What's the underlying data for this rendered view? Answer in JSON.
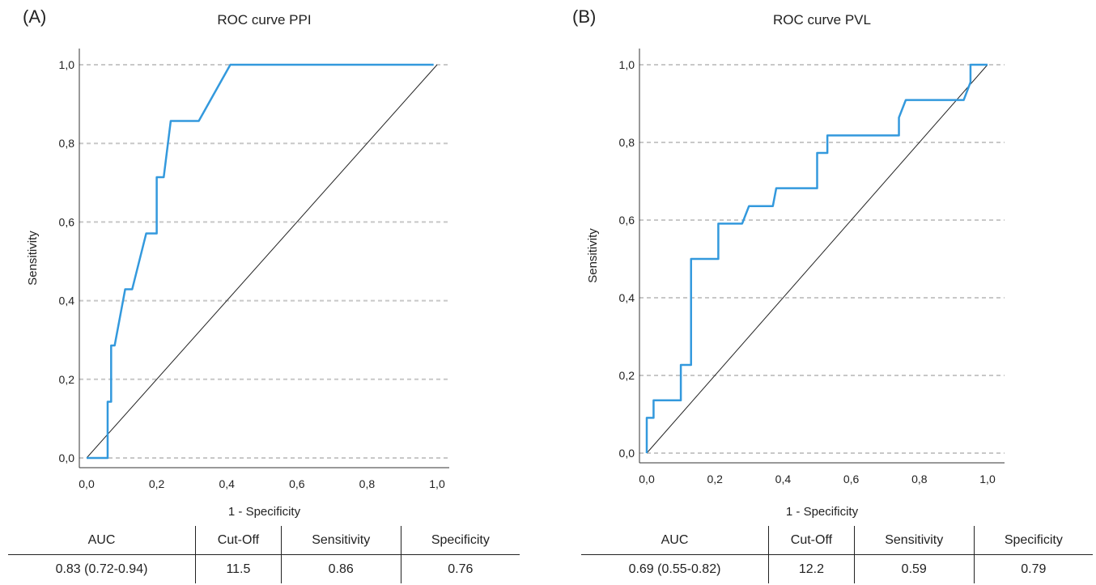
{
  "panels": [
    {
      "label": "(A)",
      "chart_data": {
        "type": "line",
        "title": "ROC curve PPI",
        "xlabel": "1 - Specificity",
        "ylabel": "Sensitivity",
        "xlim": [
          0,
          1
        ],
        "ylim": [
          0,
          1
        ],
        "xticks": [
          "0,0",
          "0,2",
          "0,4",
          "0,6",
          "0,8",
          "1,0"
        ],
        "yticks": [
          "0,0",
          "0,2",
          "0,4",
          "0,6",
          "0,8",
          "1,0"
        ],
        "grid": "horizontal dashed",
        "curve_color": "#3399dd",
        "series": [
          {
            "x": [
              0.0,
              0.06,
              0.06,
              0.07,
              0.07,
              0.08,
              0.08,
              0.11,
              0.13,
              0.13,
              0.17,
              0.2,
              0.2,
              0.22,
              0.24,
              0.32,
              0.41,
              0.99
            ],
            "y": [
              0.0,
              0.0,
              0.143,
              0.143,
              0.286,
              0.286,
              0.286,
              0.429,
              0.429,
              0.429,
              0.571,
              0.571,
              0.714,
              0.714,
              0.857,
              0.857,
              1.0,
              1.0
            ]
          },
          {
            "x": [
              0,
              1
            ],
            "y": [
              0,
              1
            ]
          }
        ]
      },
      "table": {
        "headers": [
          "AUC",
          "Cut-Off",
          "Sensitivity",
          "Specificity"
        ],
        "row": [
          "0.83 (0.72-0.94)",
          "11.5",
          "0.86",
          "0.76"
        ]
      }
    },
    {
      "label": "(B)",
      "chart_data": {
        "type": "line",
        "title": "ROC curve PVL",
        "xlabel": "1 - Specificity",
        "ylabel": "Sensitivity",
        "xlim": [
          0,
          1
        ],
        "ylim": [
          0,
          1
        ],
        "xticks": [
          "0,0",
          "0,2",
          "0,4",
          "0,6",
          "0,8",
          "1,0"
        ],
        "yticks": [
          "0,0",
          "0,2",
          "0,4",
          "0,6",
          "0,8",
          "1,0"
        ],
        "grid": "horizontal dashed",
        "curve_color": "#3399dd",
        "series": [
          {
            "x": [
              0.0,
              0.0,
              0.02,
              0.02,
              0.03,
              0.03,
              0.1,
              0.1,
              0.13,
              0.13,
              0.21,
              0.21,
              0.28,
              0.3,
              0.37,
              0.38,
              0.5,
              0.5,
              0.53,
              0.53,
              0.74,
              0.74,
              0.76,
              0.93,
              0.95,
              0.95,
              1.0
            ],
            "y": [
              0.0,
              0.091,
              0.091,
              0.136,
              0.136,
              0.136,
              0.136,
              0.227,
              0.227,
              0.5,
              0.5,
              0.591,
              0.591,
              0.636,
              0.636,
              0.682,
              0.682,
              0.773,
              0.773,
              0.818,
              0.818,
              0.864,
              0.909,
              0.909,
              0.955,
              1.0,
              1.0
            ]
          },
          {
            "x": [
              0,
              1
            ],
            "y": [
              0,
              1
            ]
          }
        ]
      },
      "table": {
        "headers": [
          "AUC",
          "Cut-Off",
          "Sensitivity",
          "Specificity"
        ],
        "row": [
          "0.69 (0.55-0.82)",
          "12.2",
          "0.59",
          "0.79"
        ]
      }
    }
  ]
}
